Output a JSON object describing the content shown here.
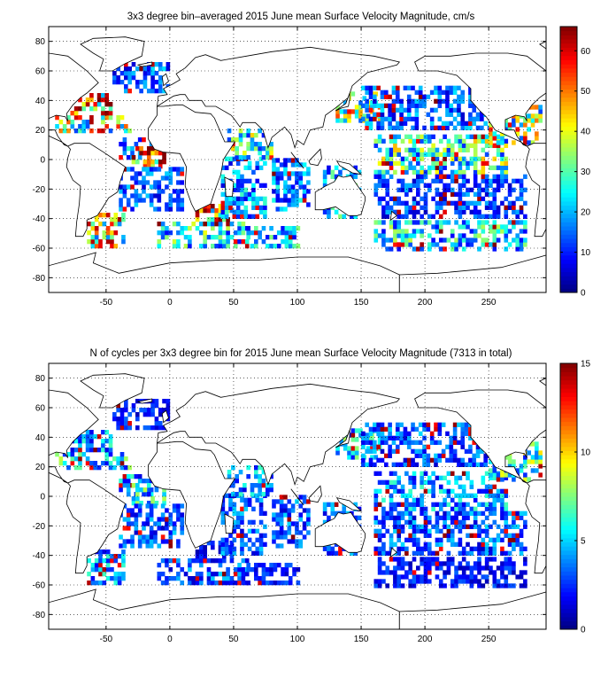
{
  "chart_data": [
    {
      "type": "heatmap",
      "title": "3x3 degree bin–averaged 2015 June mean Surface Velocity Magnitude, cm/s",
      "xlabel": "",
      "ylabel": "",
      "xlim": [
        -95,
        295
      ],
      "ylim": [
        -90,
        90
      ],
      "xticks": [
        -50,
        0,
        50,
        100,
        150,
        200,
        250
      ],
      "yticks": [
        80,
        60,
        40,
        20,
        0,
        -20,
        -40,
        -60,
        -80
      ],
      "grid": true,
      "colorbar": {
        "min": 0,
        "max": 66,
        "ticks": [
          0,
          10,
          20,
          30,
          40,
          50,
          60
        ],
        "position": "right"
      },
      "colormap": "jet",
      "regions": [
        {
          "lon": [
            -90,
            -30
          ],
          "lat": [
            18,
            30
          ],
          "value": 34
        },
        {
          "lon": [
            -78,
            -45
          ],
          "lat": [
            30,
            45
          ],
          "value": 46
        },
        {
          "lon": [
            -45,
            0
          ],
          "lat": [
            45,
            65
          ],
          "value": 14
        },
        {
          "lon": [
            -40,
            -15
          ],
          "lat": [
            0,
            15
          ],
          "value": 18
        },
        {
          "lon": [
            -30,
            -5
          ],
          "lat": [
            -6,
            9
          ],
          "value": 58
        },
        {
          "lon": [
            -40,
            10
          ],
          "lat": [
            -35,
            -5
          ],
          "value": 13
        },
        {
          "lon": [
            -65,
            -35
          ],
          "lat": [
            -60,
            -38
          ],
          "value": 38
        },
        {
          "lon": [
            -10,
            60
          ],
          "lat": [
            -60,
            -42
          ],
          "value": 24
        },
        {
          "lon": [
            20,
            50
          ],
          "lat": [
            -45,
            -30
          ],
          "value": 42
        },
        {
          "lon": [
            40,
            75
          ],
          "lat": [
            -40,
            0
          ],
          "value": 17
        },
        {
          "lon": [
            45,
            80
          ],
          "lat": [
            0,
            20
          ],
          "value": 26
        },
        {
          "lon": [
            60,
            100
          ],
          "lat": [
            -60,
            -45
          ],
          "value": 20
        },
        {
          "lon": [
            80,
            110
          ],
          "lat": [
            -35,
            0
          ],
          "value": 16
        },
        {
          "lon": [
            120,
            150
          ],
          "lat": [
            -40,
            -5
          ],
          "value": 20
        },
        {
          "lon": [
            130,
            165
          ],
          "lat": [
            25,
            45
          ],
          "value": 32
        },
        {
          "lon": [
            150,
            250
          ],
          "lat": [
            20,
            50
          ],
          "value": 14
        },
        {
          "lon": [
            160,
            265
          ],
          "lat": [
            -10,
            15
          ],
          "value": 27
        },
        {
          "lon": [
            160,
            280
          ],
          "lat": [
            -40,
            -10
          ],
          "value": 12
        },
        {
          "lon": [
            160,
            280
          ],
          "lat": [
            -62,
            -42
          ],
          "value": 22
        },
        {
          "lon": [
            250,
            290
          ],
          "lat": [
            10,
            35
          ],
          "value": 34
        }
      ]
    },
    {
      "type": "heatmap",
      "title": "N of cycles per 3x3 degree bin for 2015 June mean Surface Velocity Magnitude (7313 in total)",
      "xlabel": "",
      "ylabel": "",
      "xlim": [
        -95,
        295
      ],
      "ylim": [
        -90,
        90
      ],
      "xticks": [
        -50,
        0,
        50,
        100,
        150,
        200,
        250
      ],
      "yticks": [
        80,
        60,
        40,
        20,
        0,
        -20,
        -40,
        -60,
        -80
      ],
      "grid": true,
      "colorbar": {
        "min": 0,
        "max": 15,
        "ticks": [
          0,
          5,
          10,
          15
        ],
        "position": "right"
      },
      "colormap": "jet",
      "regions": [
        {
          "lon": [
            -90,
            -30
          ],
          "lat": [
            18,
            30
          ],
          "value": 5
        },
        {
          "lon": [
            -78,
            -45
          ],
          "lat": [
            30,
            45
          ],
          "value": 4
        },
        {
          "lon": [
            -45,
            0
          ],
          "lat": [
            45,
            65
          ],
          "value": 2
        },
        {
          "lon": [
            -40,
            -15
          ],
          "lat": [
            0,
            15
          ],
          "value": 4
        },
        {
          "lon": [
            -30,
            -5
          ],
          "lat": [
            -6,
            9
          ],
          "value": 5
        },
        {
          "lon": [
            -40,
            10
          ],
          "lat": [
            -35,
            -5
          ],
          "value": 3
        },
        {
          "lon": [
            -65,
            -35
          ],
          "lat": [
            -60,
            -38
          ],
          "value": 4
        },
        {
          "lon": [
            -10,
            60
          ],
          "lat": [
            -60,
            -42
          ],
          "value": 3
        },
        {
          "lon": [
            20,
            50
          ],
          "lat": [
            -45,
            -30
          ],
          "value": 2
        },
        {
          "lon": [
            40,
            75
          ],
          "lat": [
            -40,
            0
          ],
          "value": 3
        },
        {
          "lon": [
            45,
            80
          ],
          "lat": [
            0,
            20
          ],
          "value": 4
        },
        {
          "lon": [
            60,
            100
          ],
          "lat": [
            -60,
            -45
          ],
          "value": 2
        },
        {
          "lon": [
            80,
            110
          ],
          "lat": [
            -35,
            0
          ],
          "value": 3
        },
        {
          "lon": [
            120,
            150
          ],
          "lat": [
            -40,
            -5
          ],
          "value": 3
        },
        {
          "lon": [
            130,
            165
          ],
          "lat": [
            25,
            45
          ],
          "value": 5
        },
        {
          "lon": [
            150,
            250
          ],
          "lat": [
            20,
            50
          ],
          "value": 3
        },
        {
          "lon": [
            160,
            265
          ],
          "lat": [
            -10,
            15
          ],
          "value": 4
        },
        {
          "lon": [
            160,
            280
          ],
          "lat": [
            -40,
            -10
          ],
          "value": 3
        },
        {
          "lon": [
            160,
            280
          ],
          "lat": [
            -62,
            -42
          ],
          "value": 2
        },
        {
          "lon": [
            250,
            290
          ],
          "lat": [
            10,
            35
          ],
          "value": 6
        }
      ]
    }
  ]
}
